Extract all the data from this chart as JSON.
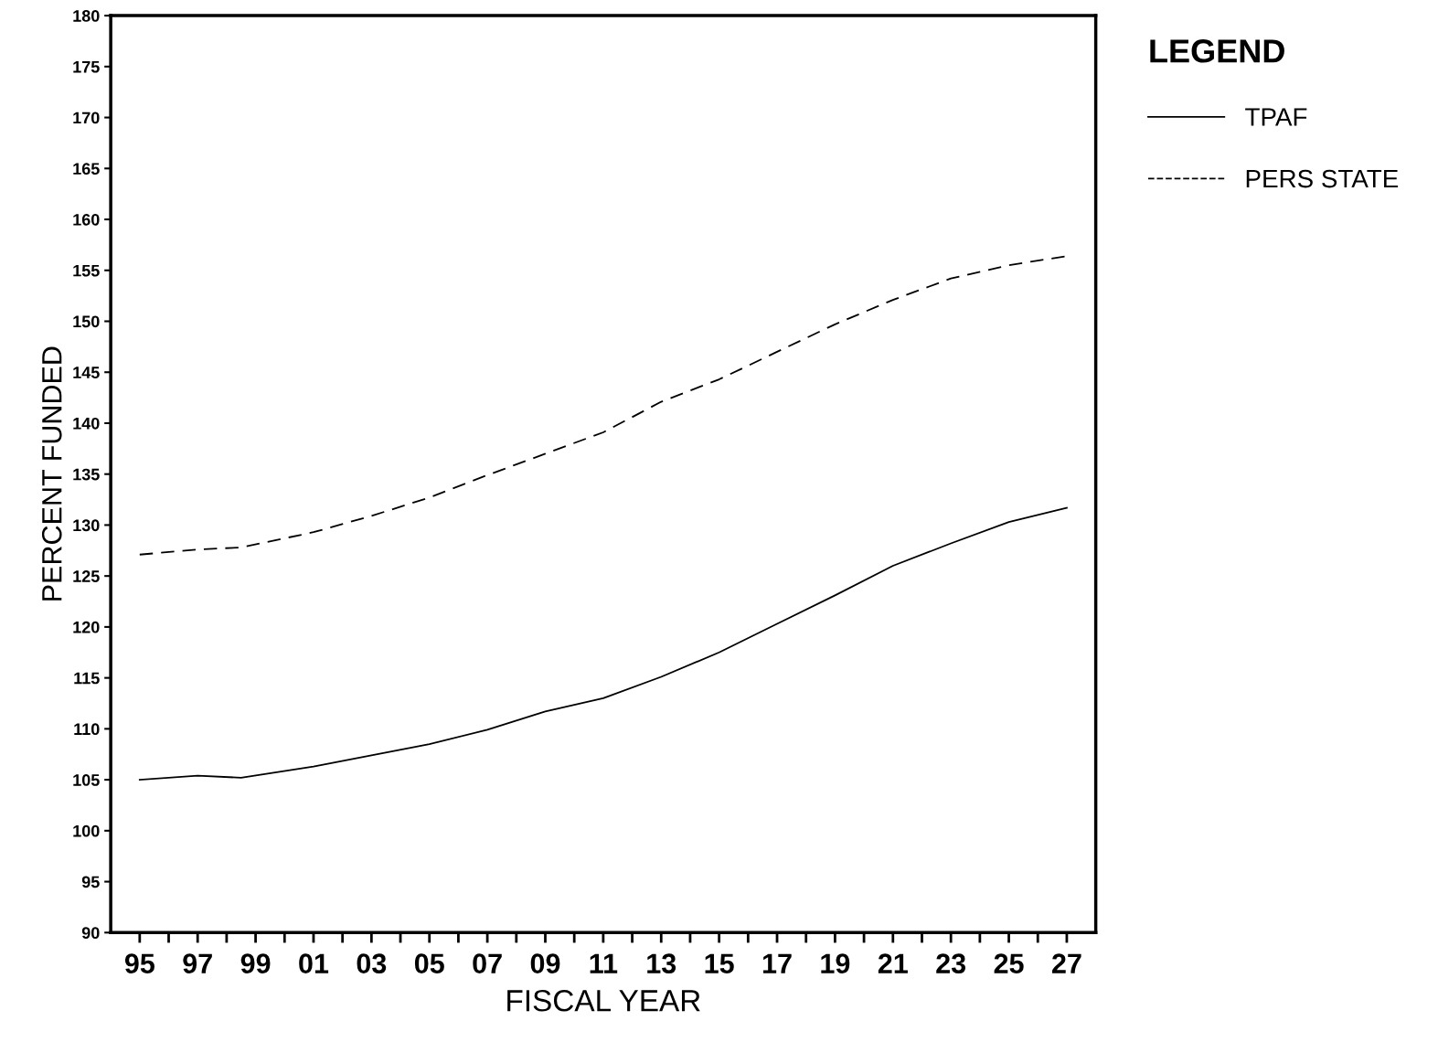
{
  "chart_data": {
    "type": "line",
    "xlabel": "FISCAL YEAR",
    "ylabel": "PERCENT FUNDED",
    "legend_title": "LEGEND",
    "legend": "right",
    "grid": false,
    "marker": "none",
    "x": [
      1995,
      1997,
      1998.5,
      2001,
      2003,
      2005,
      2007,
      2009,
      2011,
      2013,
      2015,
      2017,
      2019,
      2021,
      2023,
      2025,
      2027
    ],
    "series": [
      {
        "name": "TPAF",
        "color": "#000000",
        "line_style": "solid",
        "values": [
          105.0,
          105.4,
          105.2,
          106.3,
          107.4,
          108.5,
          109.9,
          111.7,
          113.0,
          115.1,
          117.5,
          120.3,
          123.1,
          126.0,
          128.2,
          130.3,
          131.7
        ]
      },
      {
        "name": "PERS STATE",
        "color": "#000000",
        "line_style": "dashed",
        "values": [
          127.1,
          127.6,
          127.8,
          129.3,
          130.9,
          132.7,
          134.9,
          137.0,
          139.1,
          142.1,
          144.3,
          147.0,
          149.7,
          152.1,
          154.2,
          155.5,
          156.4
        ]
      }
    ],
    "xlim": [
      1994,
      2028
    ],
    "xticks": [
      {
        "value": 1995,
        "label": "95"
      },
      {
        "value": 1996,
        "label": null
      },
      {
        "value": 1997,
        "label": "97"
      },
      {
        "value": 1998,
        "label": null
      },
      {
        "value": 1999,
        "label": "99"
      },
      {
        "value": 2000,
        "label": null
      },
      {
        "value": 2001,
        "label": "01"
      },
      {
        "value": 2002,
        "label": null
      },
      {
        "value": 2003,
        "label": "03"
      },
      {
        "value": 2004,
        "label": null
      },
      {
        "value": 2005,
        "label": "05"
      },
      {
        "value": 2006,
        "label": null
      },
      {
        "value": 2007,
        "label": "07"
      },
      {
        "value": 2008,
        "label": null
      },
      {
        "value": 2009,
        "label": "09"
      },
      {
        "value": 2010,
        "label": null
      },
      {
        "value": 2011,
        "label": "11"
      },
      {
        "value": 2012,
        "label": null
      },
      {
        "value": 2013,
        "label": "13"
      },
      {
        "value": 2014,
        "label": null
      },
      {
        "value": 2015,
        "label": "15"
      },
      {
        "value": 2016,
        "label": null
      },
      {
        "value": 2017,
        "label": "17"
      },
      {
        "value": 2018,
        "label": null
      },
      {
        "value": 2019,
        "label": "19"
      },
      {
        "value": 2020,
        "label": null
      },
      {
        "value": 2021,
        "label": "21"
      },
      {
        "value": 2022,
        "label": null
      },
      {
        "value": 2023,
        "label": "23"
      },
      {
        "value": 2024,
        "label": null
      },
      {
        "value": 2025,
        "label": "25"
      },
      {
        "value": 2026,
        "label": null
      },
      {
        "value": 2027,
        "label": "27"
      }
    ],
    "ylim": [
      90,
      180
    ],
    "yticks": [
      90,
      95,
      100,
      105,
      110,
      115,
      120,
      125,
      130,
      135,
      140,
      145,
      150,
      155,
      160,
      165,
      170,
      175,
      180
    ]
  }
}
